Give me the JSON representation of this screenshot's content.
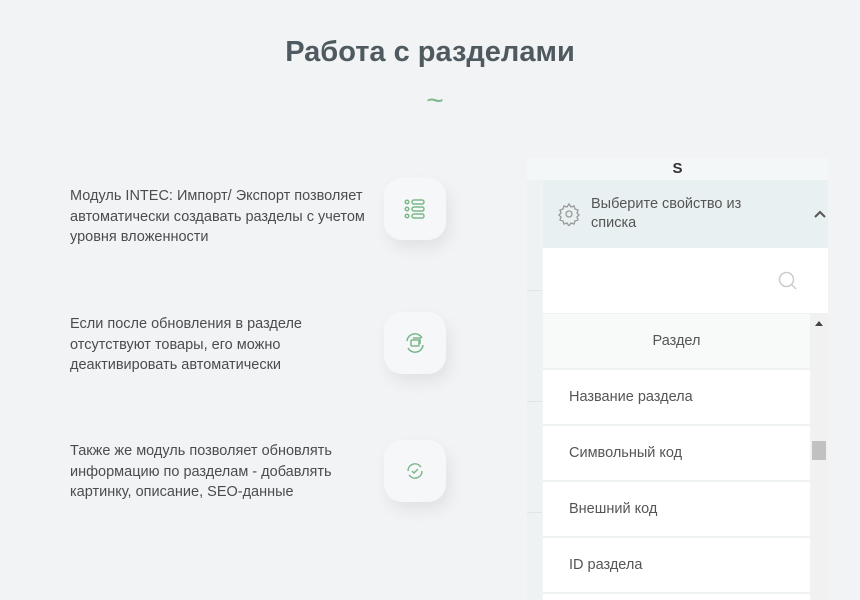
{
  "title": "Работа с разделами",
  "tilde": "~",
  "features": [
    {
      "text": "Модуль INTEC: Импорт/ Экспорт позволяет автоматически создавать разделы с учетом уровня вложенности",
      "icon": "list-icon"
    },
    {
      "text": "Если после обновления в разделе отсутствуют товары, его можно деактивировать автоматически",
      "icon": "refresh-copy-icon"
    },
    {
      "text": "Также же модуль позволяет обновлять информацию по разделам - добавлять картинку, описание, SEO-данные",
      "icon": "sync-check-icon"
    }
  ],
  "panel": {
    "column_header": "S",
    "dropdown_label": "Выберите свойство из списка",
    "search_value": "",
    "group": "Раздел",
    "items": [
      "Название раздела",
      "Символьный код",
      "Внешний код",
      "ID раздела"
    ]
  },
  "colors": {
    "accent": "#7cb88a",
    "title": "#4f5a60"
  }
}
